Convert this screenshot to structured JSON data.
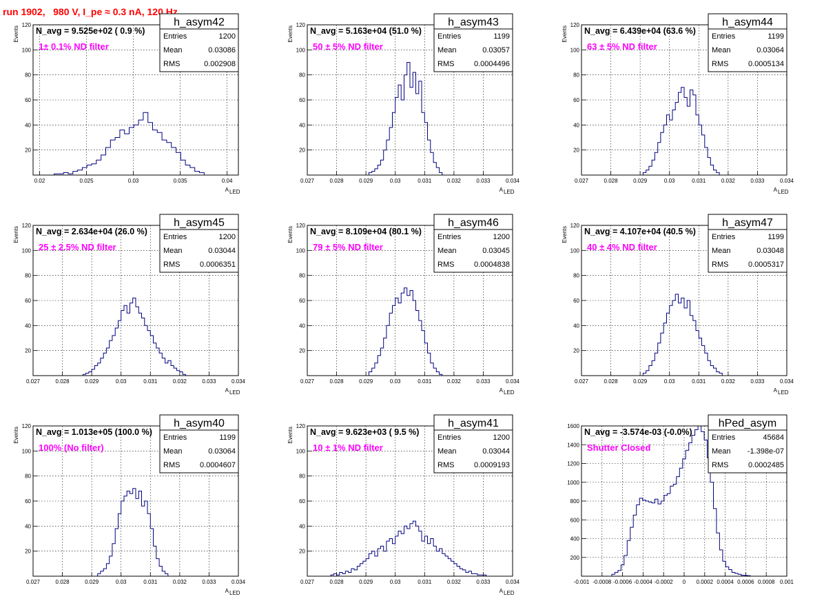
{
  "title": "run 1902,   980 V, I_pe ≈ 0.3 nA, 120 Hz",
  "colors": {
    "title": "#ff0000",
    "filter_label": "#ff00ff",
    "histogram_line": "#000080",
    "grid": "#000000"
  },
  "chart_data": [
    {
      "type": "bar",
      "name": "h_asym42",
      "annotation": "N_avg = 9.525e+02 ( 0.9 %)",
      "filter": "1± 0.1% ND filter",
      "stats": {
        "entries": "1200",
        "mean": "0.03086",
        "rms": "0.002908"
      },
      "xlabel_main": "A",
      "xlabel_sub": "LED",
      "ylabel": "Events",
      "xlim": [
        0.0193,
        0.0412
      ],
      "ylim": [
        0,
        120
      ],
      "grid": true,
      "xticks": [
        0.02,
        0.025,
        0.03,
        0.035,
        0.04
      ],
      "xtick_labels": [
        "0.02",
        "0.025",
        "0.03",
        "0.035",
        "0.04"
      ],
      "yticks": [
        20,
        40,
        60,
        80,
        100,
        120
      ],
      "ytick_labels": [
        "20",
        "40",
        "60",
        "80",
        "100",
        "120"
      ],
      "x": [
        0.0218,
        0.0223,
        0.0228,
        0.0233,
        0.0238,
        0.0243,
        0.0248,
        0.0253,
        0.0258,
        0.0263,
        0.0268,
        0.0273,
        0.0278,
        0.0283,
        0.0288,
        0.0293,
        0.0298,
        0.0303,
        0.0308,
        0.0313,
        0.0318,
        0.0323,
        0.0328,
        0.0333,
        0.0338,
        0.0343,
        0.0348,
        0.0353,
        0.0358,
        0.0363,
        0.0368,
        0.0373
      ],
      "values": [
        1,
        1,
        2,
        1,
        3,
        4,
        6,
        8,
        9,
        12,
        16,
        22,
        28,
        30,
        36,
        33,
        38,
        40,
        44,
        50,
        42,
        36,
        34,
        28,
        26,
        22,
        18,
        12,
        8,
        6,
        3,
        2
      ]
    },
    {
      "type": "bar",
      "name": "h_asym43",
      "annotation": "N_avg = 5.163e+04 (51.0 %)",
      "filter": "50 ± 5% ND filter",
      "stats": {
        "entries": "1199",
        "mean": "0.03057",
        "rms": "0.0004496"
      },
      "xlabel_main": "A",
      "xlabel_sub": "LED",
      "ylabel": "Events",
      "xlim": [
        0.027,
        0.034
      ],
      "ylim": [
        0,
        120
      ],
      "grid": true,
      "xticks": [
        0.027,
        0.028,
        0.029,
        0.03,
        0.031,
        0.032,
        0.033,
        0.034
      ],
      "xtick_labels": [
        "0.027",
        "0.028",
        "0.029",
        "0.03",
        "0.031",
        "0.032",
        "0.033",
        "0.034"
      ],
      "yticks": [
        20,
        40,
        60,
        80,
        100,
        120
      ],
      "ytick_labels": [
        "20",
        "40",
        "60",
        "80",
        "100",
        "120"
      ],
      "x": [
        0.02915,
        0.02925,
        0.02935,
        0.02945,
        0.02955,
        0.02965,
        0.02975,
        0.02985,
        0.02995,
        0.03005,
        0.03015,
        0.03025,
        0.03035,
        0.03045,
        0.03055,
        0.03065,
        0.03075,
        0.03085,
        0.03095,
        0.03105,
        0.03115,
        0.03125,
        0.03135,
        0.03145,
        0.03155
      ],
      "values": [
        2,
        3,
        5,
        8,
        12,
        20,
        28,
        38,
        50,
        62,
        72,
        60,
        80,
        90,
        70,
        82,
        65,
        75,
        50,
        42,
        28,
        18,
        10,
        6,
        2
      ]
    },
    {
      "type": "bar",
      "name": "h_asym44",
      "annotation": "N_avg = 6.439e+04 (63.6 %)",
      "filter": "63 ± 5% ND filter",
      "stats": {
        "entries": "1199",
        "mean": "0.03064",
        "rms": "0.0005134"
      },
      "xlabel_main": "A",
      "xlabel_sub": "LED",
      "ylabel": "Events",
      "xlim": [
        0.027,
        0.034
      ],
      "ylim": [
        0,
        120
      ],
      "grid": true,
      "xticks": [
        0.027,
        0.028,
        0.029,
        0.03,
        0.031,
        0.032,
        0.033,
        0.034
      ],
      "xtick_labels": [
        "0.027",
        "0.028",
        "0.029",
        "0.03",
        "0.031",
        "0.032",
        "0.033",
        "0.034"
      ],
      "yticks": [
        20,
        40,
        60,
        80,
        100,
        120
      ],
      "ytick_labels": [
        "20",
        "40",
        "60",
        "80",
        "100",
        "120"
      ],
      "x": [
        0.02915,
        0.02925,
        0.02935,
        0.02945,
        0.02955,
        0.02965,
        0.02975,
        0.02985,
        0.02995,
        0.03005,
        0.03015,
        0.03025,
        0.03035,
        0.03045,
        0.03055,
        0.03065,
        0.03075,
        0.03085,
        0.03095,
        0.03105,
        0.03115,
        0.03125,
        0.03135,
        0.03145,
        0.03155,
        0.03165
      ],
      "values": [
        2,
        4,
        7,
        12,
        18,
        26,
        34,
        40,
        48,
        44,
        52,
        58,
        66,
        70,
        62,
        55,
        68,
        64,
        48,
        40,
        32,
        22,
        14,
        8,
        4,
        2
      ]
    },
    {
      "type": "bar",
      "name": "h_asym45",
      "annotation": "N_avg = 2.634e+04 (26.0 %)",
      "filter": "25 ± 2.5% ND filter",
      "stats": {
        "entries": "1200",
        "mean": "0.03044",
        "rms": "0.0006351"
      },
      "xlabel_main": "A",
      "xlabel_sub": "LED",
      "ylabel": "Events",
      "xlim": [
        0.027,
        0.034
      ],
      "ylim": [
        0,
        120
      ],
      "grid": true,
      "xticks": [
        0.027,
        0.028,
        0.029,
        0.03,
        0.031,
        0.032,
        0.033,
        0.034
      ],
      "xtick_labels": [
        "0.027",
        "0.028",
        "0.029",
        "0.03",
        "0.031",
        "0.032",
        "0.033",
        "0.034"
      ],
      "yticks": [
        20,
        40,
        60,
        80,
        100,
        120
      ],
      "ytick_labels": [
        "20",
        "40",
        "60",
        "80",
        "100",
        "120"
      ],
      "x": [
        0.02875,
        0.02885,
        0.02895,
        0.02905,
        0.02915,
        0.02925,
        0.02935,
        0.02945,
        0.02955,
        0.02965,
        0.02975,
        0.02985,
        0.02995,
        0.03005,
        0.03015,
        0.03025,
        0.03035,
        0.03045,
        0.03055,
        0.03065,
        0.03075,
        0.03085,
        0.03095,
        0.03105,
        0.03115,
        0.03125,
        0.03135,
        0.03145,
        0.03155,
        0.03165,
        0.03175,
        0.03185,
        0.03195,
        0.03205,
        0.03215
      ],
      "values": [
        1,
        2,
        3,
        5,
        8,
        10,
        14,
        18,
        22,
        28,
        32,
        38,
        44,
        52,
        56,
        50,
        58,
        62,
        55,
        50,
        46,
        40,
        36,
        32,
        26,
        22,
        18,
        14,
        10,
        12,
        8,
        6,
        4,
        3,
        1
      ]
    },
    {
      "type": "bar",
      "name": "h_asym46",
      "annotation": "N_avg = 8.109e+04 (80.1 %)",
      "filter": "79 ± 5% ND filter",
      "stats": {
        "entries": "1200",
        "mean": "0.03045",
        "rms": "0.0004838"
      },
      "xlabel_main": "A",
      "xlabel_sub": "LED",
      "ylabel": "Events",
      "xlim": [
        0.027,
        0.034
      ],
      "ylim": [
        0,
        120
      ],
      "grid": true,
      "xticks": [
        0.027,
        0.028,
        0.029,
        0.03,
        0.031,
        0.032,
        0.033,
        0.034
      ],
      "xtick_labels": [
        "0.027",
        "0.028",
        "0.029",
        "0.03",
        "0.031",
        "0.032",
        "0.033",
        "0.034"
      ],
      "yticks": [
        20,
        40,
        60,
        80,
        100,
        120
      ],
      "ytick_labels": [
        "20",
        "40",
        "60",
        "80",
        "100",
        "120"
      ],
      "x": [
        0.02915,
        0.02925,
        0.02935,
        0.02945,
        0.02955,
        0.02965,
        0.02975,
        0.02985,
        0.02995,
        0.03005,
        0.03015,
        0.03025,
        0.03035,
        0.03045,
        0.03055,
        0.03065,
        0.03075,
        0.03085,
        0.03095,
        0.03105,
        0.03115,
        0.03125,
        0.03135,
        0.03145,
        0.03155
      ],
      "values": [
        3,
        6,
        10,
        16,
        22,
        30,
        40,
        50,
        56,
        62,
        58,
        66,
        70,
        64,
        68,
        60,
        52,
        44,
        36,
        26,
        18,
        10,
        6,
        3,
        1
      ]
    },
    {
      "type": "bar",
      "name": "h_asym47",
      "annotation": "N_avg = 4.107e+04 (40.5 %)",
      "filter": "40 ± 4% ND filter",
      "stats": {
        "entries": "1199",
        "mean": "0.03048",
        "rms": "0.0005317"
      },
      "xlabel_main": "A",
      "xlabel_sub": "LED",
      "ylabel": "Events",
      "xlim": [
        0.027,
        0.034
      ],
      "ylim": [
        0,
        120
      ],
      "grid": true,
      "xticks": [
        0.027,
        0.028,
        0.029,
        0.03,
        0.031,
        0.032,
        0.033,
        0.034
      ],
      "xtick_labels": [
        "0.027",
        "0.028",
        "0.029",
        "0.03",
        "0.031",
        "0.032",
        "0.033",
        "0.034"
      ],
      "yticks": [
        20,
        40,
        60,
        80,
        100,
        120
      ],
      "ytick_labels": [
        "20",
        "40",
        "60",
        "80",
        "100",
        "120"
      ],
      "x": [
        0.02915,
        0.02925,
        0.02935,
        0.02945,
        0.02955,
        0.02965,
        0.02975,
        0.02985,
        0.02995,
        0.03005,
        0.03015,
        0.03025,
        0.03035,
        0.03045,
        0.03055,
        0.03065,
        0.03075,
        0.03085,
        0.03095,
        0.03105,
        0.03115,
        0.03125,
        0.03135,
        0.03145,
        0.03155,
        0.03165,
        0.03175
      ],
      "values": [
        2,
        4,
        8,
        12,
        18,
        26,
        34,
        42,
        50,
        56,
        60,
        65,
        58,
        62,
        54,
        60,
        48,
        44,
        36,
        30,
        24,
        18,
        12,
        8,
        6,
        3,
        2
      ]
    },
    {
      "type": "bar",
      "name": "h_asym40",
      "annotation": "N_avg = 1.013e+05 (100.0 %)",
      "filter": "100% (No filter)",
      "stats": {
        "entries": "1199",
        "mean": "0.03064",
        "rms": "0.0004607"
      },
      "xlabel_main": "A",
      "xlabel_sub": "LED",
      "ylabel": "Events",
      "xlim": [
        0.027,
        0.034
      ],
      "ylim": [
        0,
        120
      ],
      "grid": true,
      "xticks": [
        0.027,
        0.028,
        0.029,
        0.03,
        0.031,
        0.032,
        0.033,
        0.034
      ],
      "xtick_labels": [
        "0.027",
        "0.028",
        "0.029",
        "0.03",
        "0.031",
        "0.032",
        "0.033",
        "0.034"
      ],
      "yticks": [
        20,
        40,
        60,
        80,
        100,
        120
      ],
      "ytick_labels": [
        "20",
        "40",
        "60",
        "80",
        "100",
        "120"
      ],
      "x": [
        0.02925,
        0.02935,
        0.02945,
        0.02955,
        0.02965,
        0.02975,
        0.02985,
        0.02995,
        0.03005,
        0.03015,
        0.03025,
        0.03035,
        0.03045,
        0.03055,
        0.03065,
        0.03075,
        0.03085,
        0.03095,
        0.03105,
        0.03115,
        0.03125,
        0.03135,
        0.03145,
        0.03155
      ],
      "values": [
        2,
        4,
        6,
        10,
        16,
        26,
        38,
        50,
        60,
        64,
        68,
        66,
        70,
        62,
        68,
        56,
        60,
        50,
        38,
        24,
        14,
        8,
        4,
        2
      ]
    },
    {
      "type": "bar",
      "name": "h_asym41",
      "annotation": "N_avg = 9.623e+03 ( 9.5 %)",
      "filter": "10 ± 1% ND filter",
      "stats": {
        "entries": "1200",
        "mean": "0.03044",
        "rms": "0.0009193"
      },
      "xlabel_main": "A",
      "xlabel_sub": "LED",
      "ylabel": "Events",
      "xlim": [
        0.027,
        0.034
      ],
      "ylim": [
        0,
        120
      ],
      "grid": true,
      "xticks": [
        0.027,
        0.028,
        0.029,
        0.03,
        0.031,
        0.032,
        0.033,
        0.034
      ],
      "xtick_labels": [
        "0.027",
        "0.028",
        "0.029",
        "0.03",
        "0.031",
        "0.032",
        "0.033",
        "0.034"
      ],
      "yticks": [
        20,
        40,
        60,
        80,
        100,
        120
      ],
      "ytick_labels": [
        "20",
        "40",
        "60",
        "80",
        "100",
        "120"
      ],
      "x": [
        0.02785,
        0.02795,
        0.02805,
        0.02815,
        0.02825,
        0.02835,
        0.02845,
        0.02855,
        0.02865,
        0.02875,
        0.02885,
        0.02895,
        0.02905,
        0.02915,
        0.02925,
        0.02935,
        0.02945,
        0.02955,
        0.02965,
        0.02975,
        0.02985,
        0.02995,
        0.03005,
        0.03015,
        0.03025,
        0.03035,
        0.03045,
        0.03055,
        0.03065,
        0.03075,
        0.03085,
        0.03095,
        0.03105,
        0.03115,
        0.03125,
        0.03135,
        0.03145,
        0.03155,
        0.03165,
        0.03175,
        0.03185,
        0.03195,
        0.03205,
        0.03215,
        0.03225,
        0.03235,
        0.03245,
        0.03255,
        0.03265,
        0.03275,
        0.03285,
        0.03295,
        0.03305
      ],
      "values": [
        1,
        2,
        1,
        3,
        2,
        4,
        3,
        6,
        5,
        8,
        10,
        12,
        14,
        18,
        20,
        16,
        22,
        24,
        20,
        28,
        30,
        26,
        32,
        36,
        34,
        40,
        38,
        42,
        44,
        40,
        36,
        28,
        32,
        26,
        30,
        24,
        20,
        22,
        18,
        16,
        14,
        12,
        10,
        8,
        6,
        5,
        3,
        4,
        2,
        2,
        1,
        1,
        1
      ]
    },
    {
      "type": "bar",
      "name": "hPed_asym",
      "annotation": "N_avg = -3.574e-03 (-0.0%)",
      "filter": "Shutter Closed",
      "stats": {
        "entries": "45684",
        "mean": "-1.398e-07",
        "rms": "0.0002485"
      },
      "xlabel_main": "",
      "xlabel_sub": "",
      "ylabel": "",
      "xlim": [
        -0.001,
        0.001
      ],
      "ylim": [
        0,
        1600
      ],
      "grid": true,
      "xticks": [
        -0.001,
        -0.0008,
        -0.0006,
        -0.0004,
        -0.0002,
        0,
        0.0002,
        0.0004,
        0.0006,
        0.0008,
        0.001
      ],
      "xtick_labels": [
        "-0.001",
        "-0.0008",
        "-0.0006",
        "-0.0004",
        "-0.0002",
        "0",
        "0.0002",
        "0.0004",
        "0.0006",
        "0.0008",
        "0.001"
      ],
      "yticks": [
        200,
        400,
        600,
        800,
        1000,
        1200,
        1400,
        1600
      ],
      "ytick_labels": [
        "200",
        "400",
        "600",
        "800",
        "1000",
        "1200",
        "1400",
        "1600"
      ],
      "x": [
        -0.00069,
        -0.00066,
        -0.00063,
        -0.0006,
        -0.00057,
        -0.00054,
        -0.00051,
        -0.00048,
        -0.00045,
        -0.00042,
        -0.00039,
        -0.00036,
        -0.00033,
        -0.0003,
        -0.00027,
        -0.00024,
        -0.00021,
        -0.00018,
        -0.00015,
        -0.00012,
        -9e-05,
        -6e-05,
        -3e-05,
        0,
        3e-05,
        6e-05,
        9e-05,
        0.00012,
        0.00015,
        0.00018,
        0.00021,
        0.00024,
        0.00027,
        0.0003,
        0.00033,
        0.00036,
        0.00039,
        0.00042,
        0.00045,
        0.00048,
        0.00051,
        0.00054,
        0.00057,
        0.0006,
        0.00063
      ],
      "values": [
        20,
        40,
        60,
        120,
        220,
        380,
        520,
        650,
        760,
        830,
        810,
        800,
        790,
        780,
        820,
        770,
        800,
        860,
        880,
        960,
        980,
        1060,
        1150,
        1250,
        1340,
        1420,
        1500,
        1560,
        1600,
        1540,
        1450,
        1260,
        1000,
        720,
        460,
        280,
        160,
        100,
        70,
        40,
        30,
        20,
        10,
        8,
        5
      ]
    }
  ]
}
